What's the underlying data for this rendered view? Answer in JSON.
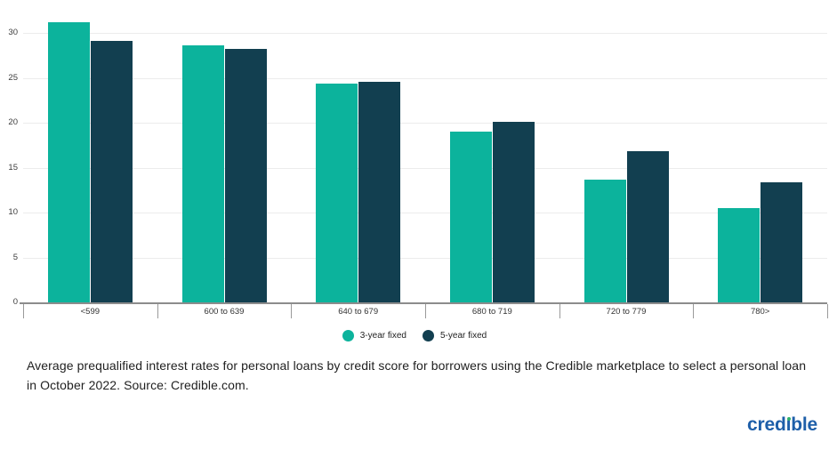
{
  "chart_data": {
    "type": "bar",
    "title": "",
    "xlabel": "",
    "ylabel": "",
    "categories": [
      "<599",
      "600 to 639",
      "640 to 679",
      "680 to 719",
      "720 to 779",
      "780>"
    ],
    "series": [
      {
        "name": "3-year fixed",
        "color": "#0cb39c",
        "values": [
          31.2,
          28.6,
          24.4,
          19.0,
          13.7,
          10.5
        ]
      },
      {
        "name": "5-year fixed",
        "color": "#123f50",
        "values": [
          29.1,
          28.2,
          24.6,
          20.1,
          16.8,
          13.4
        ]
      }
    ],
    "ylim": [
      0,
      33
    ],
    "yticks": [
      0,
      5,
      10,
      15,
      20,
      25,
      30
    ],
    "grid": true,
    "legend_position": "bottom"
  },
  "caption": "Average prequalified interest rates for personal loans by credit score for borrowers using the Credible marketplace to select a personal loan in October 2022. Source: Credible.com.",
  "logo": {
    "text": "credible",
    "part1": "cred",
    "stem": "ı",
    "part2": "ble",
    "blue": "#1e5fa9",
    "green": "#2eb36c"
  },
  "colors": {
    "gridline": "#ececec",
    "axis": "#8c8c8c",
    "tick_label": "#3c3c3c"
  }
}
